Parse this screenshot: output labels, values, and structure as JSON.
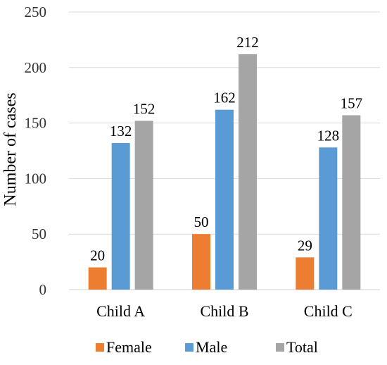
{
  "chart_data": {
    "type": "bar",
    "title": "",
    "xlabel": "",
    "ylabel": "Number of cases",
    "categories": [
      "Child A",
      "Child B",
      "Child C"
    ],
    "series": [
      {
        "name": "Female",
        "color": "#ed7d31",
        "values": [
          20,
          50,
          29
        ]
      },
      {
        "name": "Male",
        "color": "#5b9bd5",
        "values": [
          132,
          162,
          128
        ]
      },
      {
        "name": "Total",
        "color": "#a5a5a5",
        "values": [
          152,
          212,
          157
        ]
      }
    ],
    "ylim": [
      0,
      250
    ],
    "yticks": [
      0,
      50,
      100,
      150,
      200,
      250
    ],
    "grid": true,
    "legend": "bottom"
  }
}
